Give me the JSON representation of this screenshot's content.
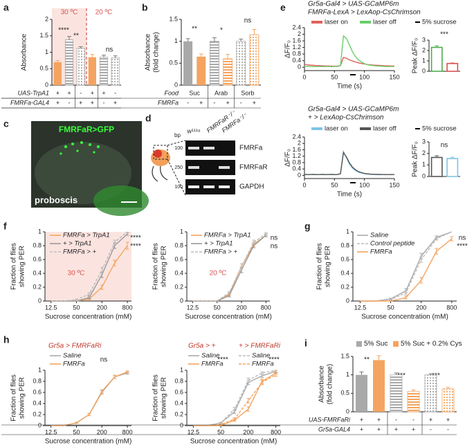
{
  "chart_data": [
    {
      "type": "bar",
      "label": "a",
      "ylabel": "Absorbance",
      "ylim": [
        0,
        2
      ],
      "yticks": [
        0,
        0.5,
        1,
        1.5,
        2
      ],
      "values": [
        0.7,
        1.38,
        1.12,
        0.85,
        0.85,
        0.83
      ],
      "errors": [
        0.05,
        0.1,
        0.05,
        0.08,
        0.06,
        0.06
      ],
      "colors": [
        "#f4a460",
        "#a9a9a9",
        "#a9a9a9",
        "#f4a460",
        "#a9a9a9",
        "#a9a9a9"
      ],
      "hatch": [
        "solid",
        "lines",
        "dots",
        "solid",
        "lines",
        "dots"
      ],
      "rows": [
        {
          "name": "UAS-TrpA1",
          "labels": [
            "+",
            "+",
            "-",
            "+",
            "+",
            "-"
          ]
        },
        {
          "name": "FMRFa-GAL4",
          "labels": [
            "+",
            "-",
            "+",
            "+",
            "-",
            "+"
          ]
        }
      ],
      "annotations": [
        "30 ºC",
        "20 ºC",
        "****",
        "**",
        "ns"
      ]
    },
    {
      "type": "bar",
      "label": "b",
      "ylabel": [
        "Absorbance",
        "(fold change)"
      ],
      "ylim": [
        0,
        1.5
      ],
      "yticks": [
        0,
        0.5,
        1,
        1.5
      ],
      "values": [
        1.0,
        0.65,
        1.0,
        0.6,
        1.0,
        1.15
      ],
      "errors": [
        0.06,
        0.06,
        0.08,
        0.1,
        0.05,
        0.12
      ],
      "colors": [
        "#a9a9a9",
        "#f4a460",
        "#a9a9a9",
        "#f4a460",
        "#a9a9a9",
        "#f4a460"
      ],
      "hatch": [
        "solid",
        "solid",
        "lines",
        "lines",
        "dots",
        "dots"
      ],
      "rows": [
        {
          "name": "Food",
          "labels": [
            "Suc",
            "Arab",
            "Sorb"
          ]
        },
        {
          "name": "FMRFa",
          "labels": [
            "-",
            "+",
            "-",
            "+",
            "-",
            "+"
          ]
        }
      ],
      "annotations": [
        "**",
        "*",
        "ns"
      ]
    },
    {
      "type": "line",
      "label": "e",
      "title": [
        "Gr5a-Gal4 > UAS-GCaMP6m",
        "FMRFa-LexA > LexAop-CsChrimson"
      ],
      "xlabel": "Time (s)",
      "ylabel": "ΔF/F₀",
      "xlim": [
        0,
        150
      ],
      "xticks": [
        0,
        50,
        100,
        150
      ],
      "ylim": [
        -0.2,
        2.4
      ],
      "yticks": [
        0,
        0.4,
        0.8,
        1.2,
        1.6,
        2,
        2.4
      ],
      "stimulus_label": "5% sucrose",
      "x": [
        0,
        5,
        10,
        15,
        20,
        25,
        30,
        35,
        40,
        45,
        50,
        55,
        60,
        65,
        70,
        75,
        80,
        85,
        90,
        95,
        100,
        105,
        110,
        115,
        120,
        125,
        130,
        135,
        140,
        145,
        150
      ],
      "series": [
        {
          "name": "laser on",
          "color": "#e0605a",
          "values": [
            0.18,
            0.15,
            0.13,
            0.12,
            0.1,
            0.1,
            0.09,
            0.08,
            0.08,
            0.07,
            0.07,
            0.07,
            0.1,
            0.6,
            0.55,
            0.45,
            0.38,
            0.32,
            0.27,
            0.23,
            0.2,
            0.17,
            0.15,
            0.13,
            0.12,
            0.11,
            0.1,
            0.09,
            0.09,
            0.08,
            0.08
          ]
        },
        {
          "name": "laser off",
          "color": "#6acd6a",
          "values": [
            0.05,
            0.06,
            0.05,
            0.04,
            0.05,
            0.05,
            0.04,
            0.05,
            0.05,
            0.04,
            0.05,
            0.05,
            0.1,
            1.9,
            1.75,
            1.35,
            0.95,
            0.65,
            0.45,
            0.32,
            0.22,
            0.16,
            0.12,
            0.1,
            0.08,
            0.07,
            0.06,
            0.05,
            0.05,
            0.05,
            0.05
          ]
        }
      ]
    },
    {
      "type": "bar",
      "ylabel": "Peak ΔF/F₀",
      "ylim": [
        0,
        3
      ],
      "yticks": [
        0,
        1,
        2,
        3
      ],
      "values": [
        2.3,
        0.75
      ],
      "errors": [
        0.15,
        0.05
      ],
      "colors": [
        "#4cae4c",
        "#d9534f"
      ],
      "hatch": [
        "outline",
        "outline"
      ],
      "annotations": [
        "***"
      ]
    },
    {
      "type": "line",
      "title": [
        "Gr5a-Gal4 > UAS-GCaMP6m",
        "+ > LexAop-CsChrimson"
      ],
      "xlabel": "Time (s)",
      "ylabel": "ΔF/F₀",
      "xlim": [
        0,
        150
      ],
      "xticks": [
        0,
        50,
        100,
        150
      ],
      "ylim": [
        -0.2,
        2.4
      ],
      "yticks": [
        0,
        0.4,
        0.8,
        1.2,
        1.6,
        2,
        2.4
      ],
      "stimulus_label": "5% sucrose",
      "x": [
        0,
        5,
        10,
        15,
        20,
        25,
        30,
        35,
        40,
        45,
        50,
        55,
        60,
        65,
        70,
        75,
        80,
        85,
        90,
        95,
        100,
        105,
        110,
        115,
        120,
        125,
        130,
        135,
        140,
        145,
        150
      ],
      "series": [
        {
          "name": "laser on",
          "color": "#7ec3e8",
          "values": [
            0.05,
            0.04,
            0.05,
            0.05,
            0.04,
            0.05,
            0.05,
            0.04,
            0.05,
            0.05,
            0.04,
            0.05,
            0.1,
            1.5,
            1.1,
            0.7,
            0.45,
            0.3,
            0.2,
            0.15,
            0.1,
            0.08,
            0.06,
            0.05,
            0.05,
            0.04,
            0.05,
            0.04,
            0.05,
            0.04,
            0.05
          ]
        },
        {
          "name": "laser off",
          "color": "#555555",
          "values": [
            0.06,
            0.05,
            0.05,
            0.06,
            0.05,
            0.05,
            0.06,
            0.05,
            0.05,
            0.06,
            0.05,
            0.05,
            0.1,
            1.42,
            1.15,
            0.78,
            0.52,
            0.35,
            0.24,
            0.17,
            0.12,
            0.1,
            0.08,
            0.07,
            0.06,
            0.06,
            0.05,
            0.05,
            0.05,
            0.05,
            0.05
          ]
        }
      ]
    },
    {
      "type": "bar",
      "ylabel": "Peak ΔF/F₀",
      "ylim": [
        0,
        3
      ],
      "yticks": [
        0,
        1,
        2,
        3
      ],
      "values": [
        1.65,
        1.55
      ],
      "errors": [
        0.15,
        0.12
      ],
      "colors": [
        "#555555",
        "#7ec3e8"
      ],
      "hatch": [
        "outline",
        "outline"
      ],
      "annotations": [
        "ns"
      ]
    },
    {
      "type": "line",
      "label": "f",
      "xlabel": "Sucrose concentration (mM)",
      "ylabel": [
        "Fraction of flies",
        "showing PER"
      ],
      "xlog": true,
      "xlim": [
        9,
        1000
      ],
      "xticks": [
        12.5,
        50,
        200,
        800
      ],
      "ylim": [
        0,
        1
      ],
      "yticks": [
        0,
        0.2,
        0.4,
        0.6,
        0.8,
        1
      ],
      "x": [
        12.5,
        25,
        50,
        100,
        200,
        400,
        800
      ],
      "series": [
        {
          "name": "FMRFa > TrpA1",
          "color": "#f4a460",
          "dash": false,
          "values": [
            0,
            0,
            0,
            0.03,
            0.2,
            0.55,
            0.8
          ],
          "errors": [
            0,
            0,
            0,
            0.01,
            0.03,
            0.04,
            0.05
          ]
        },
        {
          "name": "+ > TrpA1",
          "color": "#999999",
          "dash": false,
          "values": [
            0,
            0,
            0,
            0.05,
            0.38,
            0.8,
            0.97
          ],
          "errors": [
            0,
            0,
            0,
            0.02,
            0.04,
            0.04,
            0.02
          ]
        },
        {
          "name": "FMRFa > +",
          "color": "#bbbbbb",
          "dash": true,
          "values": [
            0,
            0,
            0.02,
            0.1,
            0.45,
            0.85,
            1.0
          ],
          "errors": [
            0,
            0,
            0.01,
            0.02,
            0.04,
            0.03,
            0
          ]
        }
      ],
      "annotations": [
        "****",
        "****",
        "30 ºC"
      ]
    },
    {
      "type": "line",
      "xlabel": "Sucrose concentration (mM)",
      "ylabel": [
        "Fraction of flies",
        "showing PER"
      ],
      "xlog": true,
      "xlim": [
        9,
        1000
      ],
      "xticks": [
        12.5,
        50,
        200,
        800
      ],
      "ylim": [
        0,
        1
      ],
      "yticks": [
        0,
        0.2,
        0.4,
        0.6,
        0.8,
        1
      ],
      "x": [
        12.5,
        25,
        50,
        100,
        200,
        400,
        800
      ],
      "series": [
        {
          "name": "FMRFa > TrpA1",
          "color": "#f4a460",
          "dash": false,
          "values": [
            0,
            0,
            0,
            0.1,
            0.5,
            0.82,
            0.95
          ],
          "errors": [
            0,
            0,
            0,
            0.02,
            0.04,
            0.03,
            0.02
          ]
        },
        {
          "name": "+ > TrpA1",
          "color": "#999999",
          "dash": false,
          "values": [
            0,
            0,
            0,
            0.08,
            0.45,
            0.8,
            0.95
          ],
          "errors": [
            0,
            0,
            0,
            0.02,
            0.04,
            0.03,
            0.02
          ]
        },
        {
          "name": "FMRFa > +",
          "color": "#bbbbbb",
          "dash": true,
          "values": [
            0,
            0,
            0,
            0.12,
            0.5,
            0.85,
            0.97
          ],
          "errors": [
            0,
            0,
            0,
            0.02,
            0.04,
            0.03,
            0.02
          ]
        }
      ],
      "annotations": [
        "ns",
        "ns",
        "20 ºC"
      ]
    },
    {
      "type": "line",
      "label": "g",
      "xlabel": "Sucrose concentration (mM)",
      "ylabel": [
        "Fraction of flies",
        "showing PER"
      ],
      "xlog": true,
      "xlim": [
        9,
        1000
      ],
      "xticks": [
        12.5,
        50,
        200,
        800
      ],
      "ylim": [
        0,
        1
      ],
      "yticks": [
        0,
        0.2,
        0.4,
        0.6,
        0.8,
        1
      ],
      "x": [
        12.5,
        25,
        50,
        100,
        200,
        400,
        800
      ],
      "series": [
        {
          "name": "Saline",
          "color": "#a9a9a9",
          "dash": false,
          "values": [
            0,
            0,
            0.03,
            0.15,
            0.65,
            0.92,
            1.0
          ],
          "errors": [
            0,
            0,
            0.01,
            0.03,
            0.04,
            0.02,
            0
          ]
        },
        {
          "name": "Control peptide",
          "color": "#bbbbbb",
          "dash": true,
          "values": [
            0,
            0,
            0.02,
            0.12,
            0.6,
            0.9,
            1.0
          ],
          "errors": [
            0,
            0,
            0.01,
            0.03,
            0.04,
            0.02,
            0
          ]
        },
        {
          "name": "FMRFa",
          "color": "#f4a460",
          "dash": false,
          "values": [
            0,
            0,
            0,
            0.05,
            0.3,
            0.72,
            0.9
          ],
          "errors": [
            0,
            0,
            0,
            0.02,
            0.04,
            0.04,
            0.03
          ]
        }
      ],
      "annotations": [
        "ns",
        "****"
      ]
    },
    {
      "type": "line",
      "label": "h",
      "title": "Gr5a > FMRFaRi",
      "xlabel": "Sucrose concentration (mM)",
      "ylabel": [
        "Fraction of flies",
        "showing PER"
      ],
      "xlog": true,
      "xlim": [
        9,
        1000
      ],
      "xticks": [
        12.5,
        50,
        200,
        800
      ],
      "ylim": [
        0,
        1
      ],
      "yticks": [
        0,
        0.2,
        0.4,
        0.6,
        0.8,
        1
      ],
      "x": [
        12.5,
        25,
        50,
        100,
        200,
        400,
        800
      ],
      "series": [
        {
          "name": "Saline",
          "color": "#a9a9a9",
          "dash": false,
          "values": [
            0,
            0,
            0.05,
            0.2,
            0.6,
            0.88,
            0.95
          ],
          "errors": [
            0,
            0,
            0.01,
            0.02,
            0.03,
            0.03,
            0.02
          ]
        },
        {
          "name": "FMRFa",
          "color": "#f4a460",
          "dash": false,
          "values": [
            0,
            0,
            0.05,
            0.2,
            0.62,
            0.88,
            0.97
          ],
          "errors": [
            0,
            0,
            0.01,
            0.02,
            0.03,
            0.03,
            0.02
          ]
        }
      ],
      "annotations": [
        "ns"
      ]
    },
    {
      "type": "line",
      "xlabel": "Sucrose concentration (mM)",
      "ylabel": [
        "Fraction of flies",
        "showing PER"
      ],
      "legend_titles": [
        "Gr5a > +",
        "+ > FMRFaRi"
      ],
      "xlog": true,
      "xlim": [
        9,
        1000
      ],
      "xticks": [
        12.5,
        50,
        200,
        800
      ],
      "ylim": [
        0,
        1
      ],
      "yticks": [
        0,
        0.2,
        0.4,
        0.6,
        0.8,
        1
      ],
      "x": [
        12.5,
        25,
        50,
        100,
        200,
        400,
        800
      ],
      "series": [
        {
          "name": "Saline",
          "color": "#a9a9a9",
          "dash": false,
          "values": [
            0,
            0,
            0.05,
            0.25,
            0.78,
            0.9,
            0.98
          ],
          "errors": [
            0,
            0,
            0.01,
            0.03,
            0.04,
            0.03,
            0.02
          ]
        },
        {
          "name": "FMRFa",
          "color": "#f4a460",
          "dash": false,
          "values": [
            0,
            0,
            0,
            0.1,
            0.3,
            0.8,
            0.95
          ],
          "errors": [
            0,
            0,
            0,
            0.02,
            0.04,
            0.04,
            0.02
          ]
        },
        {
          "name": "Saline",
          "color": "#bbbbbb",
          "dash": true,
          "values": [
            0,
            0,
            0.05,
            0.3,
            0.82,
            0.95,
            1.0
          ],
          "errors": [
            0,
            0,
            0.01,
            0.03,
            0.04,
            0.02,
            0
          ]
        },
        {
          "name": "FMRFa",
          "color": "#f4a460",
          "dash": true,
          "values": [
            0,
            0,
            0.02,
            0.12,
            0.45,
            0.78,
            0.92
          ],
          "errors": [
            0,
            0,
            0.01,
            0.02,
            0.04,
            0.04,
            0.03
          ]
        }
      ],
      "annotations": [
        "****",
        "****"
      ]
    },
    {
      "type": "bar",
      "label": "i",
      "ylabel": [
        "Absorbance",
        "(fold change)"
      ],
      "ylim": [
        0,
        1.5
      ],
      "yticks": [
        0,
        0.5,
        1,
        1.5
      ],
      "values": [
        1.0,
        1.4,
        1.0,
        0.55,
        1.0,
        0.62
      ],
      "errors": [
        0.08,
        0.12,
        0.05,
        0.04,
        0.03,
        0.04
      ],
      "colors": [
        "#a9a9a9",
        "#f4a460",
        "#a9a9a9",
        "#f4a460",
        "#a9a9a9",
        "#f4a460"
      ],
      "hatch": [
        "solid",
        "solid",
        "lines",
        "lines",
        "dots",
        "dots"
      ],
      "legend": [
        {
          "name": "5% Suc",
          "color": "#a9a9a9"
        },
        {
          "name": "5% Suc + 0.2% Cys",
          "color": "#f4a460"
        }
      ],
      "rows": [
        {
          "name": "UAS-FMRFaRi",
          "labels": [
            "+",
            "+",
            "-",
            "-",
            "+",
            "+"
          ]
        },
        {
          "name": "Gr5a-GAL4",
          "labels": [
            "+",
            "+",
            "+",
            "+",
            "-",
            "-"
          ]
        }
      ],
      "annotations": [
        "**",
        "***",
        "***"
      ]
    }
  ],
  "panel_c": {
    "label": "c",
    "marker": "FMRFaR>GFP",
    "caption": "proboscis"
  },
  "panel_d": {
    "label": "d",
    "unit": "bp",
    "lanes": [
      "w¹¹¹⁸",
      "FMRFaR⁻/⁻",
      "FMRFa⁻/⁻"
    ],
    "bands": [
      "FMRFa",
      "FMRFaR",
      "GAPDH"
    ],
    "sizes": [
      100,
      250,
      100
    ]
  }
}
